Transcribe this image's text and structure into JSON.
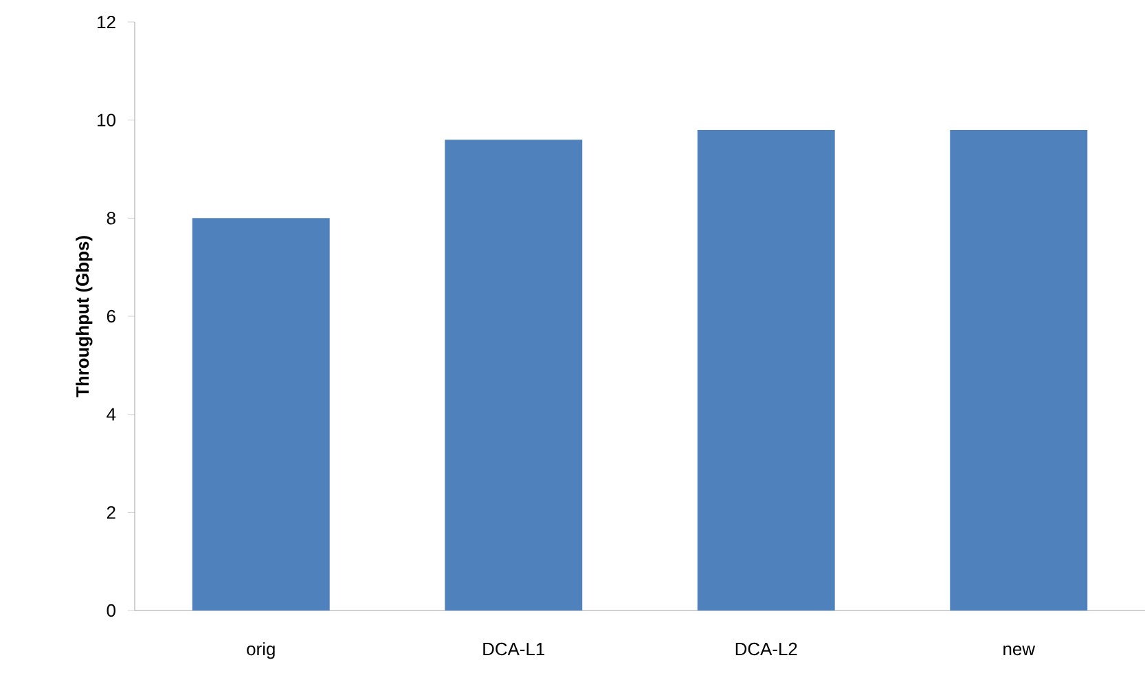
{
  "chart_data": {
    "type": "bar",
    "ylabel": "Throughput (Gbps)",
    "categories": [
      "orig",
      "DCA-L1",
      "DCA-L2",
      "new"
    ],
    "values": [
      8.0,
      9.6,
      9.8,
      9.8
    ],
    "color": "#4f81bd",
    "ylim": [
      0,
      12
    ],
    "yticks": [
      0,
      2,
      4,
      6,
      8,
      10,
      12
    ]
  }
}
